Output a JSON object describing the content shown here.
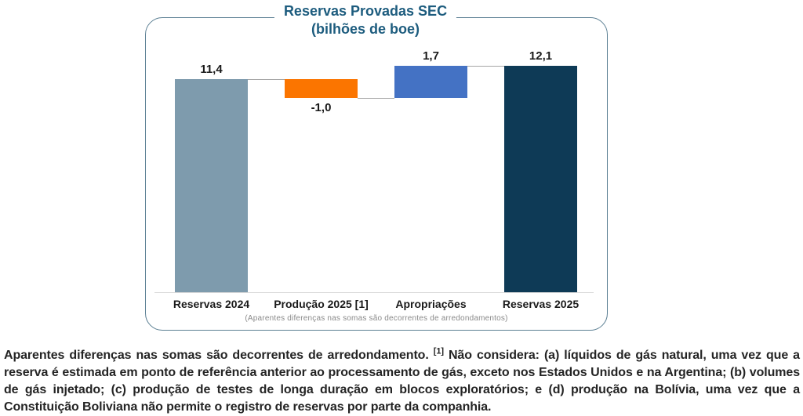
{
  "chart": {
    "title_line1": "Reservas Provadas SEC",
    "title_line2": "(bilhões de boe)",
    "note": "(Aparentes diferenças nas somas são decorrentes de arredondamentos)",
    "colors": {
      "frame_border": "#5b7f93",
      "title": "#1d5c7e",
      "connector": "#a6a6a6",
      "axis": "#d9d9d9",
      "value_label": "#1a1a1a"
    }
  },
  "chart_data": {
    "type": "bar",
    "subtype": "waterfall",
    "title": "Reservas Provadas SEC",
    "subtitle": "(bilhões de boe)",
    "unit": "bilhões de boe",
    "ylim": [
      0,
      14.7
    ],
    "grid": false,
    "legend": false,
    "categories": [
      "Reservas 2024",
      "Produção 2025 [1]",
      "Apropriações",
      "Reservas 2025"
    ],
    "values": [
      11.4,
      -1.0,
      1.7,
      12.1
    ],
    "bars": [
      {
        "category": "Reservas 2024",
        "value": 11.4,
        "label": "11,4",
        "kind": "total",
        "color": "#7e9bad",
        "label_position": "above"
      },
      {
        "category": "Produção 2025 [1]",
        "value": -1.0,
        "label": "-1,0",
        "kind": "delta",
        "color": "#fb7500",
        "label_position": "below"
      },
      {
        "category": "Apropriações",
        "value": 1.7,
        "label": "1,7",
        "kind": "delta",
        "color": "#4472c4",
        "label_position": "above"
      },
      {
        "category": "Reservas 2025",
        "value": 12.1,
        "label": "12,1",
        "kind": "total",
        "color": "#0e3a56",
        "label_position": "above"
      }
    ],
    "annotation": "(Aparentes diferenças nas somas são decorrentes de arredondamentos)"
  },
  "footnote": {
    "part1": "Aparentes diferenças nas somas são decorrentes de arredondamento. ",
    "sup": "[1]",
    "part2": " Não considera: (a) líquidos de gás natural, uma vez que a reserva é estimada em ponto de referência anterior ao processamento de gás, exceto nos Estados Unidos e na Argentina; (b) volumes de gás injetado; (c) produção de testes de longa duração em blocos exploratórios; e (d) produção na Bolívia, uma vez que a Constituição Boliviana não permite o registro de reservas por parte da companhia."
  }
}
